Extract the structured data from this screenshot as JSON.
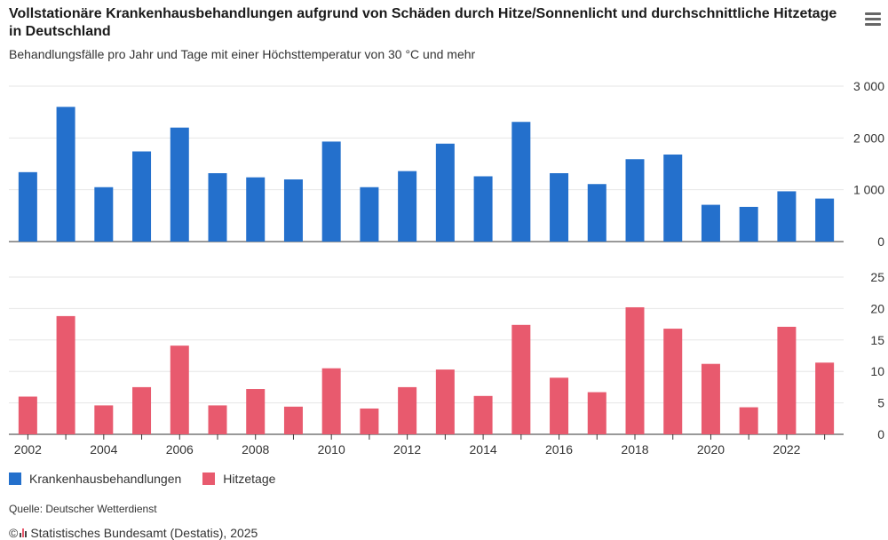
{
  "title": "Vollstationäre Krankenhausbehandlungen aufgrund von Schäden durch Hitze/Sonnenlicht und durchschnittliche Hitzetage in Deutschland",
  "subtitle": "Behandlungsfälle pro Jahr und Tage mit einer Höchsttemperatur von 30 °C und mehr",
  "menu_icon": "hamburger-menu-icon",
  "source": "Quelle: Deutscher Wetterdienst",
  "copyright_symbol": "©",
  "credit": "Statistisches Bundesamt (Destatis), 2025",
  "colors": {
    "series1": "#2470cc",
    "series2": "#e85a6e"
  },
  "chart_data": {
    "type": "bar",
    "categories": [
      "2002",
      "2003",
      "2004",
      "2005",
      "2006",
      "2007",
      "2008",
      "2009",
      "2010",
      "2011",
      "2012",
      "2013",
      "2014",
      "2015",
      "2016",
      "2017",
      "2018",
      "2019",
      "2020",
      "2021",
      "2022",
      "2023"
    ],
    "x_tick_labels": [
      "2002",
      "2004",
      "2006",
      "2008",
      "2010",
      "2012",
      "2014",
      "2016",
      "2018",
      "2020",
      "2022"
    ],
    "series": [
      {
        "name": "Krankenhausbehandlungen",
        "values": [
          1340,
          2600,
          1050,
          1740,
          2200,
          1320,
          1240,
          1200,
          1930,
          1050,
          1360,
          1890,
          1260,
          2310,
          1320,
          1110,
          1590,
          1680,
          710,
          670,
          970,
          830
        ],
        "ylim": [
          0,
          3000
        ],
        "ticks": [
          0,
          1000,
          2000,
          3000
        ],
        "tick_labels": [
          "0",
          "1 000",
          "2 000",
          "3 000"
        ]
      },
      {
        "name": "Hitzetage",
        "values": [
          6,
          18.8,
          4.6,
          7.5,
          14.1,
          4.6,
          7.2,
          4.4,
          10.5,
          4.1,
          7.5,
          10.3,
          6.1,
          17.4,
          9.0,
          6.7,
          20.2,
          16.8,
          11.2,
          4.3,
          17.1,
          11.4
        ],
        "ylim": [
          0,
          25
        ],
        "ticks": [
          0,
          5,
          10,
          15,
          20,
          25
        ],
        "tick_labels": [
          "0",
          "5",
          "10",
          "15",
          "20",
          "25"
        ]
      }
    ],
    "grid": true,
    "legend_position": "bottom-left",
    "y_axis_position": "right"
  }
}
